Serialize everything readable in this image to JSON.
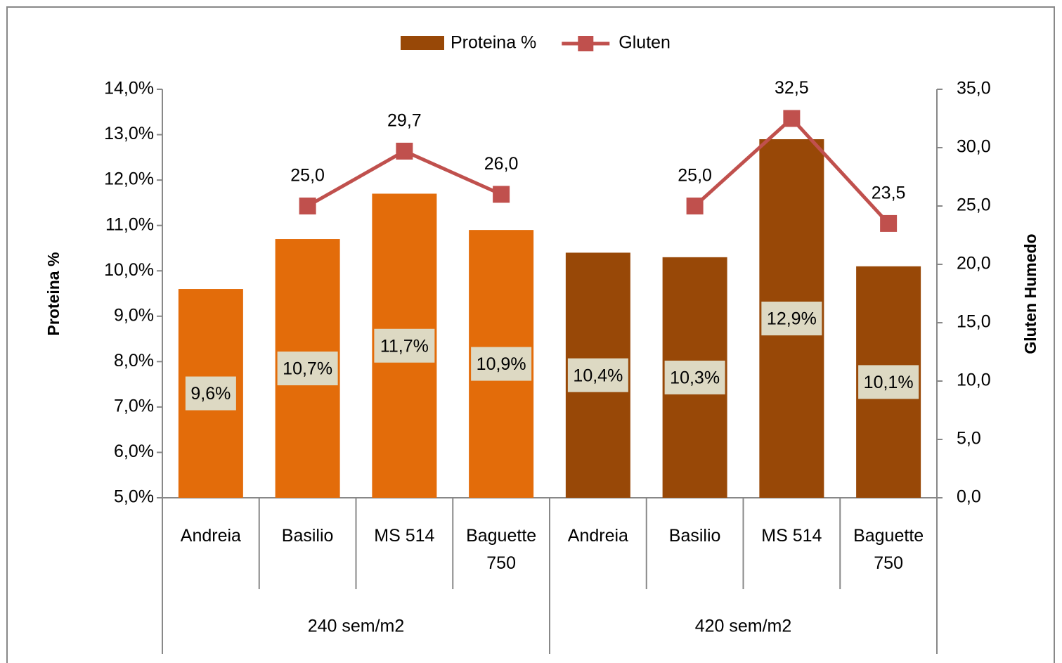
{
  "chart_data": {
    "type": "bar",
    "categories": [
      "Andreia",
      "Basilio",
      "MS 514",
      "Baguette 750",
      "Andreia",
      "Basilio",
      "MS 514",
      "Baguette 750"
    ],
    "groups": [
      {
        "label": "240 sem/m2",
        "count": 4
      },
      {
        "label": "420 sem/m2",
        "count": 4
      }
    ],
    "series": [
      {
        "name": "Proteina %",
        "color": "#984807",
        "bar_colors": [
          "#e36c0a",
          "#e36c0a",
          "#e36c0a",
          "#e36c0a",
          "#984807",
          "#984807",
          "#984807",
          "#984807"
        ],
        "values": [
          9.6,
          10.7,
          11.7,
          10.9,
          10.4,
          10.3,
          12.9,
          10.1
        ],
        "value_labels": [
          "9,6%",
          "10,7%",
          "11,7%",
          "10,9%",
          "10,4%",
          "10,3%",
          "12,9%",
          "10,1%"
        ]
      },
      {
        "name": "Gluten",
        "type": "line",
        "axis": "y2",
        "color": "#c0504d",
        "values": [
          null,
          25.0,
          29.7,
          26.0,
          null,
          25.0,
          32.5,
          23.5
        ],
        "value_labels": [
          null,
          "25,0",
          "29,7",
          "26,0",
          null,
          "25,0",
          "32,5",
          "23,5"
        ]
      }
    ],
    "ylabel": "Proteina %",
    "y2label": "Gluten Humedo",
    "ylim": [
      5,
      14
    ],
    "yticks": [
      {
        "value": 5,
        "label": "5,0%"
      },
      {
        "value": 6,
        "label": "6,0%"
      },
      {
        "value": 7,
        "label": "7,0%"
      },
      {
        "value": 8,
        "label": "8,0%"
      },
      {
        "value": 9,
        "label": "9,0%"
      },
      {
        "value": 10,
        "label": "10,0%"
      },
      {
        "value": 11,
        "label": "11,0%"
      },
      {
        "value": 12,
        "label": "12,0%"
      },
      {
        "value": 13,
        "label": "13,0%"
      },
      {
        "value": 14,
        "label": "14,0%"
      }
    ],
    "y2lim": [
      0,
      35
    ],
    "y2ticks": [
      {
        "value": 0,
        "label": "0,0"
      },
      {
        "value": 5,
        "label": "5,0"
      },
      {
        "value": 10,
        "label": "10,0"
      },
      {
        "value": 15,
        "label": "15,0"
      },
      {
        "value": 20,
        "label": "20,0"
      },
      {
        "value": 25,
        "label": "25,0"
      },
      {
        "value": 30,
        "label": "30,0"
      },
      {
        "value": 35,
        "label": "35,0"
      }
    ],
    "grid": false,
    "legend": "top"
  }
}
